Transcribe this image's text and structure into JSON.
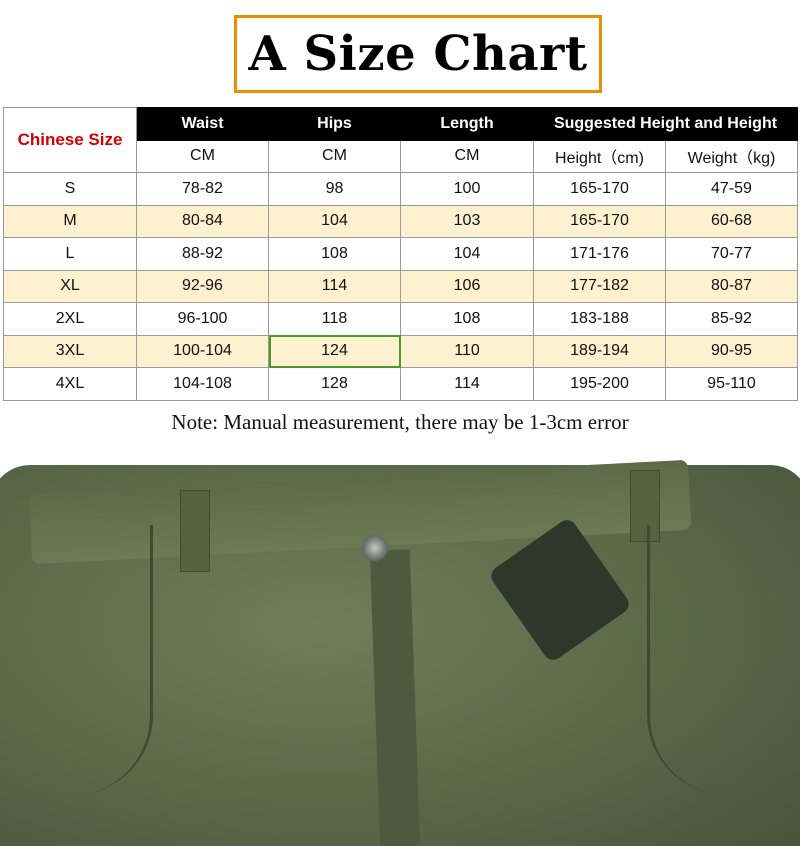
{
  "title": "A Size Chart",
  "table": {
    "size_header": "Chinese Size",
    "headers": [
      "Waist",
      "Hips",
      "Length",
      "Suggested Height and Height"
    ],
    "units": [
      "CM",
      "CM",
      "CM",
      "Height（cm)",
      "Weight（kg)"
    ],
    "rows": [
      [
        "S",
        "78-82",
        "98",
        "100",
        "165-170",
        "47-59"
      ],
      [
        "M",
        "80-84",
        "104",
        "103",
        "165-170",
        "60-68"
      ],
      [
        "L",
        "88-92",
        "108",
        "104",
        "171-176",
        "70-77"
      ],
      [
        "XL",
        "92-96",
        "114",
        "106",
        "177-182",
        "80-87"
      ],
      [
        "2XL",
        "96-100",
        "118",
        "108",
        "183-188",
        "85-92"
      ],
      [
        "3XL",
        "100-104",
        "124",
        "110",
        "189-194",
        "90-95"
      ],
      [
        "4XL",
        "104-108",
        "128",
        "114",
        "195-200",
        "95-110"
      ]
    ]
  },
  "note": "Note: Manual measurement, there may be 1-3cm error",
  "colors": {
    "title_border": "#f08c00",
    "size_header": "#d40000",
    "alt_row": "#fdf1cf",
    "header_bg": "#000000",
    "pants": "#5e6b4a"
  }
}
